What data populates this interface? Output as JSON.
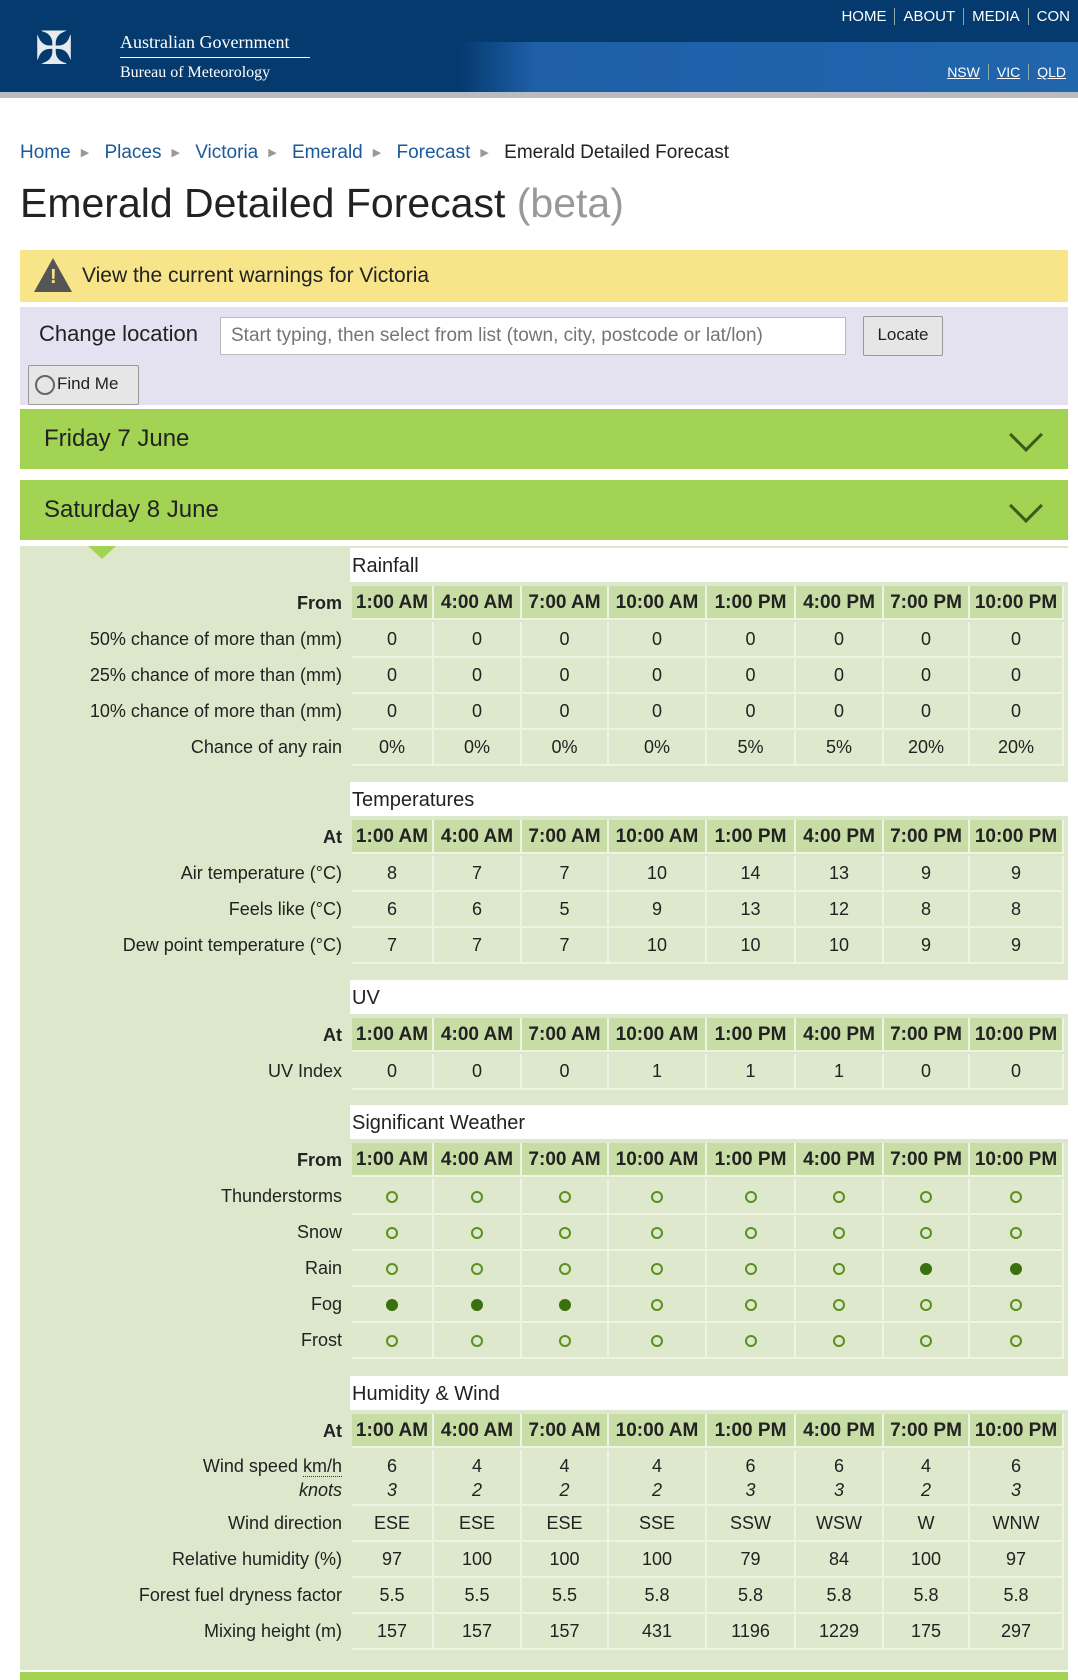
{
  "header": {
    "gov": "Australian Government",
    "bureau": "Bureau of Meteorology",
    "topnav": [
      "HOME",
      "ABOUT",
      "MEDIA",
      "CON"
    ],
    "statenav": [
      "NSW",
      "VIC",
      "QLD"
    ]
  },
  "breadcrumb": [
    "Home",
    "Places",
    "Victoria",
    "Emerald",
    "Forecast"
  ],
  "breadcrumb_current": "Emerald Detailed Forecast",
  "title": "Emerald Detailed Forecast",
  "title_suffix": "(beta)",
  "warning": "View the current warnings for Victoria",
  "location": {
    "label": "Change location",
    "placeholder": "Start typing, then select from list (town, city, postcode or lat/lon)",
    "locate": "Locate",
    "find_me": "Find Me"
  },
  "days": [
    "Friday 7 June",
    "Saturday 8 June"
  ],
  "times": [
    "1:00 AM",
    "4:00 AM",
    "7:00 AM",
    "10:00 AM",
    "1:00 PM",
    "4:00 PM",
    "7:00 PM",
    "10:00 PM"
  ],
  "sections": [
    {
      "title": "Rainfall",
      "head": "From",
      "rows": [
        {
          "label": "50% chance of more than (mm)",
          "values": [
            "0",
            "0",
            "0",
            "0",
            "0",
            "0",
            "0",
            "0"
          ]
        },
        {
          "label": "25% chance of more than (mm)",
          "values": [
            "0",
            "0",
            "0",
            "0",
            "0",
            "0",
            "0",
            "0"
          ]
        },
        {
          "label": "10% chance of more than (mm)",
          "values": [
            "0",
            "0",
            "0",
            "0",
            "0",
            "0",
            "0",
            "0"
          ]
        },
        {
          "label": "Chance of any rain",
          "values": [
            "0%",
            "0%",
            "0%",
            "0%",
            "5%",
            "5%",
            "20%",
            "20%"
          ]
        }
      ]
    },
    {
      "title": "Temperatures",
      "head": "At",
      "rows": [
        {
          "label": "Air temperature (°C)",
          "values": [
            "8",
            "7",
            "7",
            "10",
            "14",
            "13",
            "9",
            "9"
          ]
        },
        {
          "label": "Feels like (°C)",
          "values": [
            "6",
            "6",
            "5",
            "9",
            "13",
            "12",
            "8",
            "8"
          ]
        },
        {
          "label": "Dew point temperature (°C)",
          "values": [
            "7",
            "7",
            "7",
            "10",
            "10",
            "10",
            "9",
            "9"
          ]
        }
      ]
    },
    {
      "title": "UV",
      "head": "At",
      "rows": [
        {
          "label": "UV Index",
          "values": [
            "0",
            "0",
            "0",
            "1",
            "1",
            "1",
            "0",
            "0"
          ]
        }
      ]
    },
    {
      "title": "Significant Weather",
      "head": "From",
      "rows": [
        {
          "label": "Thunderstorms",
          "dots": [
            0,
            0,
            0,
            0,
            0,
            0,
            0,
            0
          ]
        },
        {
          "label": "Snow",
          "dots": [
            0,
            0,
            0,
            0,
            0,
            0,
            0,
            0
          ]
        },
        {
          "label": "Rain",
          "dots": [
            0,
            0,
            0,
            0,
            0,
            0,
            1,
            1
          ]
        },
        {
          "label": "Fog",
          "dots": [
            1,
            1,
            1,
            0,
            0,
            0,
            0,
            0
          ]
        },
        {
          "label": "Frost",
          "dots": [
            0,
            0,
            0,
            0,
            0,
            0,
            0,
            0
          ]
        }
      ]
    },
    {
      "title": "Humidity & Wind",
      "head": "At",
      "rows": [
        {
          "label": "Wind speed",
          "unit1": "km/h",
          "unit2": "knots",
          "values": [
            "6",
            "4",
            "4",
            "4",
            "6",
            "6",
            "4",
            "6"
          ],
          "values2": [
            "3",
            "2",
            "2",
            "2",
            "3",
            "3",
            "2",
            "3"
          ]
        },
        {
          "label": "Wind direction",
          "values": [
            "ESE",
            "ESE",
            "ESE",
            "SSE",
            "SSW",
            "WSW",
            "W",
            "WNW"
          ]
        },
        {
          "label": "Relative humidity (%)",
          "values": [
            "97",
            "100",
            "100",
            "100",
            "79",
            "84",
            "100",
            "97"
          ]
        },
        {
          "label": "Forest fuel dryness factor",
          "values": [
            "5.5",
            "5.5",
            "5.5",
            "5.8",
            "5.8",
            "5.8",
            "5.8",
            "5.8"
          ]
        },
        {
          "label": "Mixing height (m)",
          "values": [
            "157",
            "157",
            "157",
            "431",
            "1196",
            "1229",
            "175",
            "297"
          ]
        }
      ]
    }
  ]
}
